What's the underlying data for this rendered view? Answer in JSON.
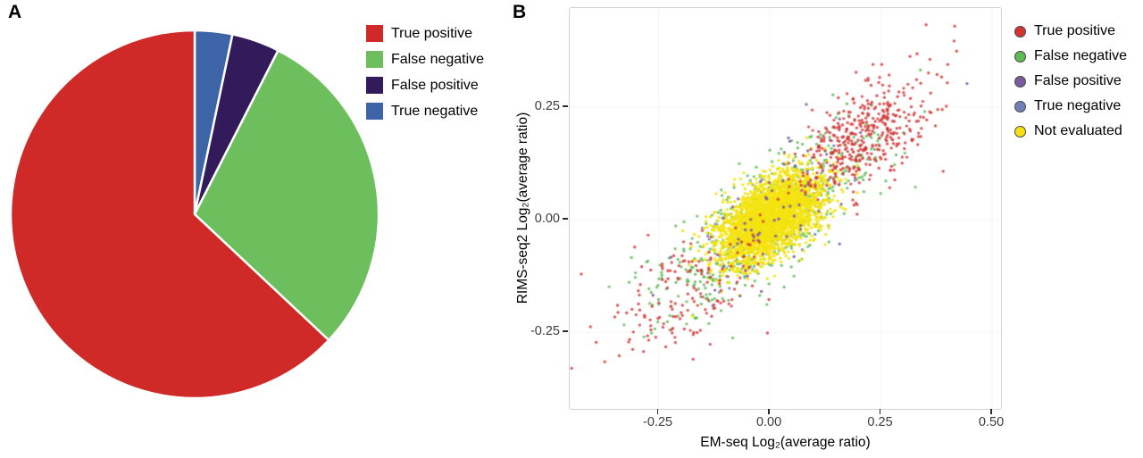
{
  "panels": {
    "a": {
      "label": "A"
    },
    "b": {
      "label": "B"
    }
  },
  "chart_data": [
    {
      "type": "pie",
      "panel": "A",
      "legend_position": "top-right",
      "slices": [
        {
          "label": "True positive",
          "value": 63.0,
          "color": "#cf2a27"
        },
        {
          "label": "False negative",
          "value": 29.5,
          "color": "#6dbf5e"
        },
        {
          "label": "False positive",
          "value": 4.2,
          "color": "#331a5b"
        },
        {
          "label": "True negative",
          "value": 3.3,
          "color": "#3c64a6"
        }
      ],
      "clockwise_from_top": [
        "True negative",
        "False positive",
        "False negative",
        "True positive"
      ],
      "separator_color": "#ffffff"
    },
    {
      "type": "scatter",
      "panel": "B",
      "xlabel": "EM-seq Log₂(average ratio)",
      "ylabel": "RIMS-seq2 Log₂(average ratio)",
      "xlim": [
        -0.45,
        0.52
      ],
      "ylim": [
        -0.42,
        0.47
      ],
      "xticks": [
        {
          "v": -0.25,
          "label": "-0.25"
        },
        {
          "v": 0.0,
          "label": "0.00"
        },
        {
          "v": 0.25,
          "label": "0.25"
        },
        {
          "v": 0.5,
          "label": "0.50"
        }
      ],
      "yticks": [
        {
          "v": 0.25,
          "label": "0.25"
        },
        {
          "v": 0.0,
          "label": "0.00"
        },
        {
          "v": -0.25,
          "label": "-0.25"
        }
      ],
      "grid": "faint",
      "legend_position": "right",
      "seed": 42,
      "point_radius": 1.7,
      "series": [
        {
          "name": "True positive",
          "color": "#d23434",
          "alpha": 0.8,
          "r": 1.7,
          "clusters": [
            {
              "n": 420,
              "cx": 0.21,
              "cy": 0.18,
              "sx": 0.075,
              "sy": 0.065,
              "rho": 0.55
            },
            {
              "n": 150,
              "cx": -0.18,
              "cy": -0.155,
              "sx": 0.085,
              "sy": 0.075,
              "rho": 0.55
            },
            {
              "n": 10,
              "cx": 0.4,
              "cy": 0.36,
              "sx": 0.05,
              "sy": 0.05,
              "rho": 0.3
            },
            {
              "n": 7,
              "cx": -0.33,
              "cy": -0.27,
              "sx": 0.06,
              "sy": 0.05,
              "rho": 0.3
            }
          ]
        },
        {
          "name": "False negative",
          "color": "#5eb956",
          "alpha": 0.8,
          "r": 1.7,
          "clusters": [
            {
              "n": 520,
              "cx": 0.0,
              "cy": 0.0,
              "sx": 0.125,
              "sy": 0.105,
              "rho": 0.8
            },
            {
              "n": 40,
              "cx": -0.22,
              "cy": -0.12,
              "sx": 0.07,
              "sy": 0.05,
              "rho": 0.4
            }
          ]
        },
        {
          "name": "False positive",
          "color": "#7a5b9e",
          "alpha": 0.85,
          "r": 1.7,
          "clusters": [
            {
              "n": 60,
              "cx": 0.03,
              "cy": 0.03,
              "sx": 0.12,
              "sy": 0.1,
              "rho": 0.75
            }
          ]
        },
        {
          "name": "True negative",
          "color": "#7080b8",
          "alpha": 0.85,
          "r": 1.7,
          "clusters": [
            {
              "n": 45,
              "cx": -0.01,
              "cy": 0.0,
              "sx": 0.09,
              "sy": 0.075,
              "rho": 0.6
            }
          ]
        },
        {
          "name": "Not evaluated",
          "color": "#f4e311",
          "alpha": 0.9,
          "r": 1.7,
          "clusters": [
            {
              "n": 3000,
              "cx": 0.0,
              "cy": 0.003,
              "sx": 0.058,
              "sy": 0.05,
              "rho": 0.55
            }
          ]
        }
      ],
      "draw_order": [
        "False negative",
        "True negative",
        "Not evaluated",
        "False positive",
        "True positive"
      ]
    }
  ]
}
